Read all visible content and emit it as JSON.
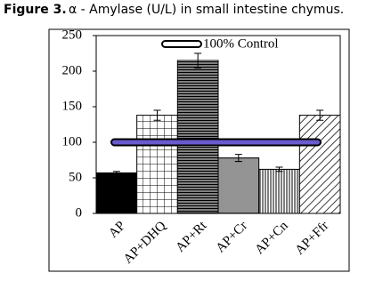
{
  "chart_data": {
    "type": "bar",
    "figure_label": "Figure 3.",
    "title": "α - Amylase (U/L) in small intestine chymus.",
    "categories": [
      "AP",
      "AP+DHQ",
      "AP+Rt",
      "AP+Cr",
      "AP+Cn",
      "AP+Ffr"
    ],
    "values": [
      57,
      138,
      215,
      78,
      62,
      138
    ],
    "errors": [
      2,
      7,
      10,
      5,
      3,
      7
    ],
    "ylim": [
      0,
      250
    ],
    "yticks": [
      0,
      50,
      100,
      150,
      200,
      250
    ],
    "reference_line": {
      "value": 100,
      "label": "100% Control"
    }
  }
}
